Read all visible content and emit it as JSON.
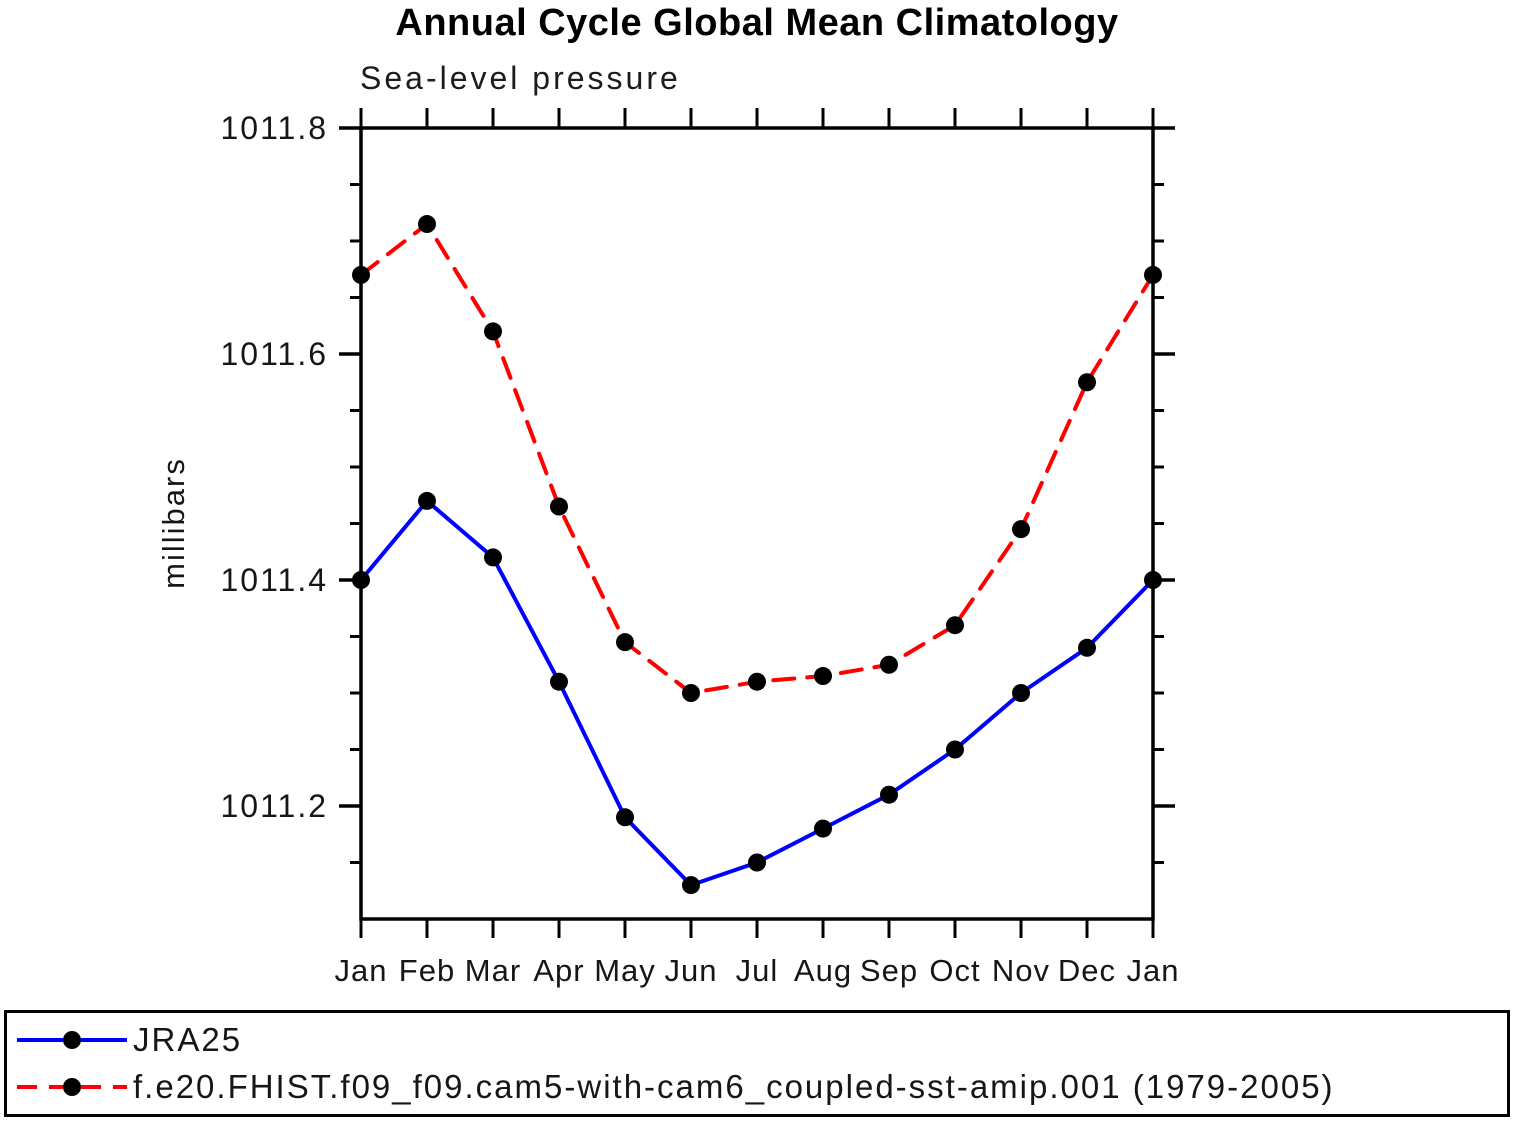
{
  "title": "Annual Cycle Global Mean Climatology",
  "subtitle": "Sea-level pressure",
  "y_axis": {
    "label": "millibars",
    "min": 1011.1,
    "max": 1011.8,
    "major_tick_values": [
      1011.2,
      1011.4,
      1011.6,
      1011.8
    ],
    "major_tick_labels": [
      "1011.2",
      "1011.4",
      "1011.6",
      "1011.8"
    ],
    "minor_tick_values": [
      1011.15,
      1011.25,
      1011.3,
      1011.35,
      1011.45,
      1011.5,
      1011.55,
      1011.65,
      1011.7,
      1011.75
    ]
  },
  "x_axis": {
    "labels": [
      "Jan",
      "Feb",
      "Mar",
      "Apr",
      "May",
      "Jun",
      "Jul",
      "Aug",
      "Sep",
      "Oct",
      "Nov",
      "Dec",
      "Jan"
    ]
  },
  "chart_data": {
    "type": "line",
    "title": "Sea-level pressure",
    "xlabel": "",
    "ylabel": "millibars",
    "ylim": [
      1011.1,
      1011.8
    ],
    "grid": false,
    "legend_position": "bottom",
    "categories": [
      "Jan",
      "Feb",
      "Mar",
      "Apr",
      "May",
      "Jun",
      "Jul",
      "Aug",
      "Sep",
      "Oct",
      "Nov",
      "Dec",
      "Jan"
    ],
    "series": [
      {
        "name": "JRA25",
        "color": "#0000ff",
        "line_style": "solid",
        "marker": "filled-black-circle",
        "values": [
          1011.4,
          1011.47,
          1011.42,
          1011.31,
          1011.19,
          1011.13,
          1011.15,
          1011.18,
          1011.21,
          1011.25,
          1011.3,
          1011.34,
          1011.4
        ]
      },
      {
        "name": "f.e20.FHIST.f09_f09.cam5-with-cam6_coupled-sst-amip.001 (1979-2005)",
        "color": "#ff0000",
        "line_style": "dashed",
        "marker": "filled-black-circle",
        "values": [
          1011.67,
          1011.715,
          1011.62,
          1011.465,
          1011.345,
          1011.3,
          1011.31,
          1011.315,
          1011.325,
          1011.36,
          1011.445,
          1011.575,
          1011.67
        ]
      }
    ]
  },
  "legend": {
    "items": [
      {
        "label": "JRA25",
        "color": "#0000ff",
        "line_style": "solid"
      },
      {
        "label": "f.e20.FHIST.f09_f09.cam5-with-cam6_coupled-sst-amip.001 (1979-2005)",
        "color": "#ff0000",
        "line_style": "dashed"
      }
    ]
  },
  "colors": {
    "axis": "#000000",
    "marker": "#000000",
    "jra25_line": "#0000ff",
    "model_line": "#ff0000",
    "background": "#ffffff"
  }
}
